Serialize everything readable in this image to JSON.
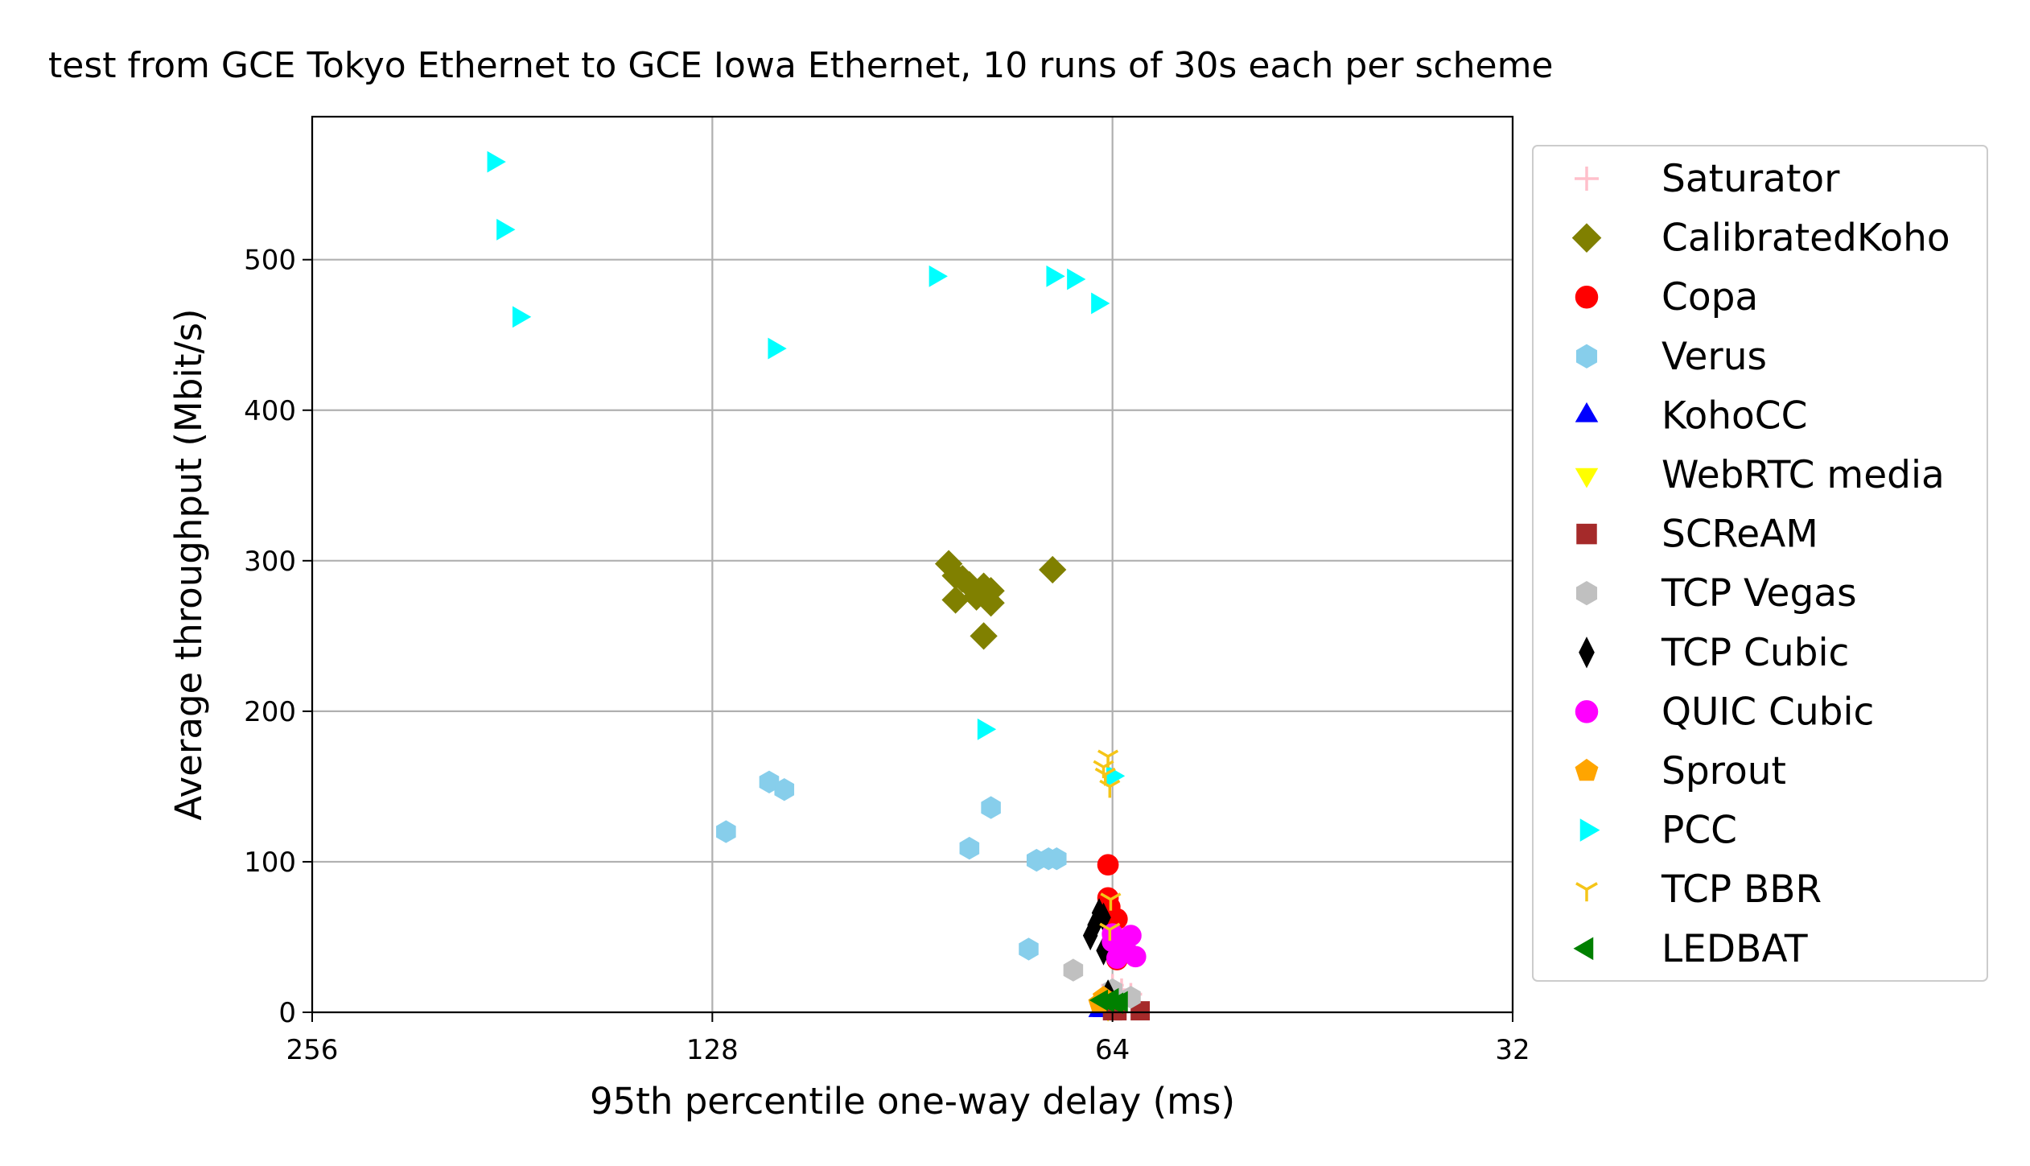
{
  "chart_data": {
    "type": "scatter",
    "title": "test from GCE Tokyo Ethernet to GCE Iowa Ethernet, 10 runs of 30s each per scheme",
    "xlabel": "95th percentile one-way delay (ms)",
    "ylabel": "Average throughput (Mbit/s)",
    "x_scale": "log2, inverted",
    "xlim": [
      256,
      32
    ],
    "ylim": [
      0,
      595
    ],
    "x_ticks": [
      256,
      128,
      64,
      32
    ],
    "y_ticks": [
      0,
      100,
      200,
      300,
      400,
      500
    ],
    "grid": true,
    "legend_position": "outside right",
    "series": [
      {
        "name": "Saturator",
        "marker": "plus",
        "color": "#ffc0cb",
        "points": [
          [
            64,
            18
          ],
          [
            63,
            15
          ],
          [
            62,
            12
          ]
        ]
      },
      {
        "name": "CalibratedKoho",
        "marker": "diamond",
        "color": "#808000",
        "points": [
          [
            85,
            298
          ],
          [
            84,
            290
          ],
          [
            83,
            288
          ],
          [
            82,
            284
          ],
          [
            80,
            283
          ],
          [
            79,
            280
          ],
          [
            81,
            276
          ],
          [
            84,
            274
          ],
          [
            79,
            272
          ],
          [
            80,
            250
          ],
          [
            71,
            294
          ]
        ]
      },
      {
        "name": "Copa",
        "marker": "circle",
        "color": "#ff0000",
        "points": [
          [
            64.5,
            98
          ],
          [
            64.5,
            76
          ],
          [
            64.3,
            70
          ],
          [
            63.5,
            62
          ],
          [
            64,
            45
          ],
          [
            63,
            40
          ],
          [
            63.5,
            35
          ]
        ]
      },
      {
        "name": "Verus",
        "marker": "hexagon",
        "color": "#87ceeb",
        "points": [
          [
            116,
            153
          ],
          [
            113,
            148
          ],
          [
            125,
            120
          ],
          [
            79,
            136
          ],
          [
            82,
            109
          ],
          [
            74,
            42
          ],
          [
            73,
            101
          ],
          [
            71.5,
            102
          ],
          [
            70.5,
            102
          ]
        ]
      },
      {
        "name": "KohoCC",
        "marker": "triangle-up",
        "color": "#0000ff",
        "points": [
          [
            65.5,
            1
          ],
          [
            65,
            1
          ]
        ]
      },
      {
        "name": "WebRTC media",
        "marker": "triangle-down",
        "color": "#ffff00",
        "points": [
          [
            64.5,
            2
          ],
          [
            64,
            2
          ]
        ]
      },
      {
        "name": "SCReAM",
        "marker": "square",
        "color": "#a52a2a",
        "points": [
          [
            63.5,
            1
          ],
          [
            61,
            1
          ],
          [
            64,
            1
          ]
        ]
      },
      {
        "name": "TCP Vegas",
        "marker": "hexagon",
        "color": "#c0c0c0",
        "points": [
          [
            68.5,
            28
          ],
          [
            62,
            10
          ],
          [
            64,
            15
          ]
        ]
      },
      {
        "name": "TCP Cubic",
        "marker": "thin-diamond",
        "color": "#000000",
        "points": [
          [
            66.5,
            51
          ],
          [
            66,
            58
          ],
          [
            65.5,
            66
          ],
          [
            65,
            63
          ],
          [
            65,
            41
          ],
          [
            64.5,
            12
          ]
        ]
      },
      {
        "name": "QUIC Cubic",
        "marker": "circle",
        "color": "#ff00ff",
        "points": [
          [
            62,
            51
          ],
          [
            64,
            52
          ],
          [
            61.5,
            37
          ],
          [
            63.5,
            36
          ],
          [
            64,
            47
          ],
          [
            62.5,
            41
          ]
        ]
      },
      {
        "name": "Sprout",
        "marker": "pentagon",
        "color": "#ffa500",
        "points": [
          [
            65,
            10
          ],
          [
            65.5,
            6
          ]
        ]
      },
      {
        "name": "PCC",
        "marker": "triangle-right",
        "color": "#00ffff",
        "points": [
          [
            187,
            565
          ],
          [
            184,
            520
          ],
          [
            179,
            462
          ],
          [
            115,
            441
          ],
          [
            87,
            489
          ],
          [
            71,
            489
          ],
          [
            68.5,
            487
          ],
          [
            64,
            157
          ],
          [
            80,
            188
          ],
          [
            65.7,
            471
          ]
        ]
      },
      {
        "name": "TCP BBR",
        "marker": "tri-down",
        "color": "#f5c518",
        "points": [
          [
            65,
            163
          ],
          [
            64.5,
            170
          ],
          [
            64.3,
            150
          ],
          [
            64.8,
            158
          ],
          [
            64.2,
            75
          ],
          [
            64.3,
            55
          ]
        ]
      },
      {
        "name": "LEDBAT",
        "marker": "triangle-left",
        "color": "#008000",
        "points": [
          [
            65.2,
            8
          ],
          [
            64.5,
            7
          ],
          [
            63.5,
            6
          ],
          [
            63,
            7
          ],
          [
            64,
            9
          ]
        ]
      }
    ]
  }
}
